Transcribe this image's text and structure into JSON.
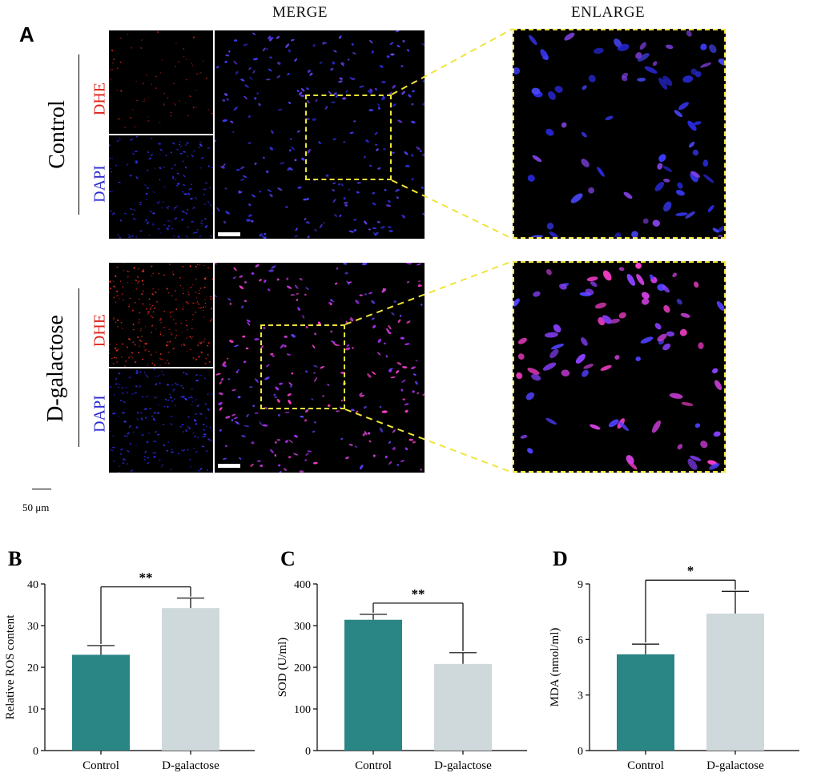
{
  "panel_a": {
    "letter": "A",
    "col_headers": {
      "merge": "MERGE",
      "enlarge": "ENLARGE"
    },
    "groups": [
      {
        "name": "Control",
        "stain_top": "DHE",
        "stain_bottom": "DAPI"
      },
      {
        "name": "D-galactose",
        "stain_top": "DHE",
        "stain_bottom": "DAPI"
      }
    ],
    "scale_legend": "50 μm",
    "colors": {
      "dhe_label": "#e0201a",
      "dapi_label": "#2a2ad0",
      "zoom_frame": "#f0e43a",
      "dhe_signal": "#d8261b",
      "dapi_signal": "#2a2af0",
      "merge_pink": "#e040e0"
    }
  },
  "chart_data": [
    {
      "letter": "B",
      "type": "bar",
      "categories": [
        "Control",
        "D-galactose"
      ],
      "values": [
        23,
        34.2
      ],
      "errors": [
        2.2,
        2.4
      ],
      "ylabel": "Relative ROS content",
      "ylim": [
        0,
        40
      ],
      "yticks": [
        "0",
        "10",
        "20",
        "30",
        "40"
      ],
      "significance": "**",
      "colors": [
        "#2a8585",
        "#cfd9db"
      ]
    },
    {
      "letter": "C",
      "type": "bar",
      "categories": [
        "Control",
        "D-galactose"
      ],
      "values": [
        314,
        208
      ],
      "errors": [
        13,
        27
      ],
      "ylabel": "SOD  (U/ml)",
      "ylim": [
        0,
        400
      ],
      "yticks": [
        "0",
        "100",
        "200",
        "300",
        "400"
      ],
      "significance": "**",
      "colors": [
        "#2a8585",
        "#cfd9db"
      ]
    },
    {
      "letter": "D",
      "type": "bar",
      "categories": [
        "Control",
        "D-galactose"
      ],
      "values": [
        5.2,
        7.4
      ],
      "errors": [
        0.55,
        1.2
      ],
      "ylabel": "MDA  (nmol/ml)",
      "ylim": [
        0,
        9
      ],
      "yticks": [
        "0",
        "3",
        "6",
        "9"
      ],
      "significance": "*",
      "colors": [
        "#2a8585",
        "#cfd9db"
      ]
    }
  ]
}
